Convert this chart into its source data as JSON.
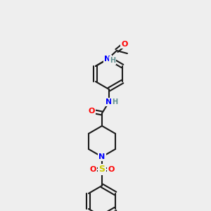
{
  "bg_color": "#eeeeee",
  "bond_color": "#1a1a1a",
  "atom_colors": {
    "O": "#ff0000",
    "N": "#0000ff",
    "H": "#5f8f8f",
    "S": "#cccc00",
    "C": "#1a1a1a"
  }
}
